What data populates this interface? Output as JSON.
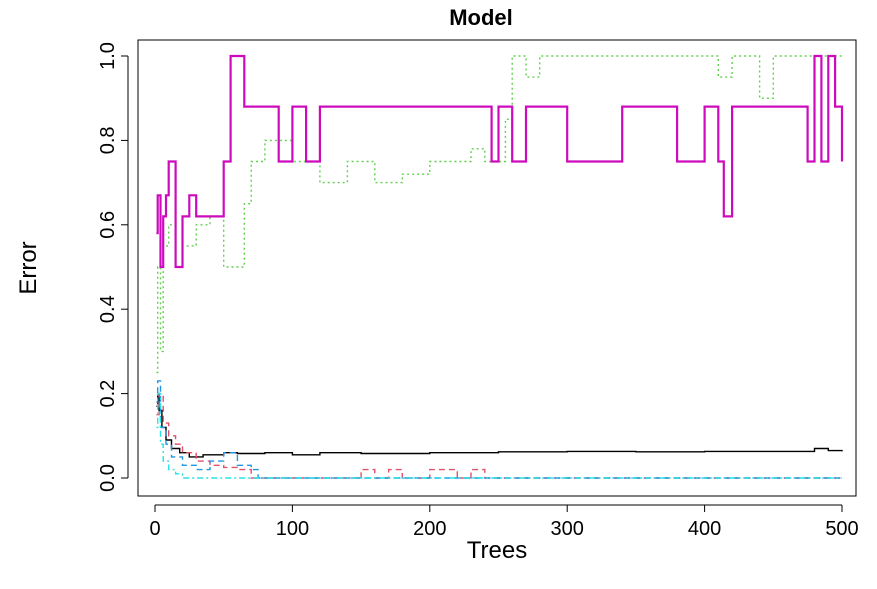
{
  "chart_data": {
    "type": "line",
    "title": "Model",
    "xlabel": "Trees",
    "ylabel": "Error",
    "xlim": [
      0,
      500
    ],
    "ylim": [
      0.0,
      1.0
    ],
    "x_ticks": [
      "0",
      "100",
      "200",
      "300",
      "400",
      "500"
    ],
    "y_ticks": [
      "0.0",
      "0.2",
      "0.4",
      "0.6",
      "0.8",
      "1.0"
    ],
    "grid": false,
    "legend": "none",
    "series": [
      {
        "color": "#000000",
        "dash": "solid",
        "x": [
          1,
          2,
          3,
          5,
          8,
          12,
          18,
          25,
          35,
          50,
          60,
          80,
          100,
          120,
          150,
          200,
          250,
          300,
          350,
          400,
          450,
          480,
          490,
          500
        ],
        "y": [
          0.17,
          0.2,
          0.16,
          0.12,
          0.09,
          0.07,
          0.06,
          0.05,
          0.055,
          0.06,
          0.058,
          0.06,
          0.055,
          0.06,
          0.058,
          0.06,
          0.062,
          0.063,
          0.062,
          0.063,
          0.063,
          0.07,
          0.065,
          0.063
        ]
      },
      {
        "color": "#df536b",
        "dash": "dashed",
        "x": [
          1,
          3,
          6,
          10,
          15,
          20,
          30,
          40,
          50,
          60,
          70,
          80,
          100,
          140,
          150,
          160,
          170,
          180,
          200,
          220,
          230,
          240,
          250,
          300,
          500
        ],
        "y": [
          0.15,
          0.2,
          0.13,
          0.1,
          0.08,
          0.06,
          0.04,
          0.03,
          0.025,
          0.02,
          0.0,
          0.0,
          0.0,
          0.0,
          0.02,
          0.0,
          0.02,
          0.0,
          0.02,
          0.0,
          0.02,
          0.0,
          0.0,
          0.0,
          0.0
        ]
      },
      {
        "color": "#61d04f",
        "dash": "dotted",
        "x": [
          1,
          2,
          4,
          6,
          10,
          15,
          20,
          30,
          40,
          50,
          60,
          65,
          70,
          80,
          100,
          120,
          140,
          160,
          180,
          200,
          230,
          240,
          255,
          260,
          270,
          280,
          300,
          400,
          410,
          420,
          440,
          450,
          460,
          500
        ],
        "y": [
          0.25,
          0.5,
          0.3,
          0.55,
          0.6,
          0.5,
          0.55,
          0.6,
          0.62,
          0.5,
          0.5,
          0.65,
          0.75,
          0.8,
          0.75,
          0.7,
          0.75,
          0.7,
          0.72,
          0.75,
          0.78,
          0.75,
          0.85,
          1.0,
          0.95,
          1.0,
          1.0,
          1.0,
          0.95,
          1.0,
          0.9,
          1.0,
          1.0,
          1.0
        ]
      },
      {
        "color": "#2297e6",
        "dash": "dashed",
        "x": [
          1,
          2,
          4,
          8,
          12,
          20,
          30,
          40,
          50,
          60,
          70,
          75,
          80,
          500
        ],
        "y": [
          0.18,
          0.23,
          0.12,
          0.08,
          0.05,
          0.03,
          0.02,
          0.04,
          0.06,
          0.03,
          0.02,
          0.0,
          0.0,
          0.0
        ]
      },
      {
        "color": "#28e2e5",
        "dash": "dotdash",
        "x": [
          1,
          2,
          4,
          6,
          10,
          15,
          20,
          30,
          500
        ],
        "y": [
          0.12,
          0.2,
          0.08,
          0.04,
          0.02,
          0.01,
          0.0,
          0.0,
          0.0
        ]
      },
      {
        "color": "#cd0bbc",
        "dash": "solid",
        "x": [
          1,
          2,
          4,
          6,
          8,
          10,
          15,
          20,
          25,
          30,
          35,
          40,
          50,
          55,
          60,
          65,
          75,
          90,
          100,
          110,
          120,
          130,
          150,
          170,
          200,
          230,
          245,
          250,
          260,
          270,
          300,
          340,
          370,
          380,
          400,
          410,
          414,
          420,
          450,
          470,
          475,
          480,
          485,
          490,
          495,
          500
        ],
        "y": [
          0.58,
          0.67,
          0.5,
          0.62,
          0.67,
          0.75,
          0.5,
          0.62,
          0.67,
          0.62,
          0.62,
          0.62,
          0.75,
          1.0,
          1.0,
          0.88,
          0.88,
          0.75,
          0.88,
          0.75,
          0.88,
          0.88,
          0.88,
          0.88,
          0.88,
          0.88,
          0.75,
          0.88,
          0.75,
          0.88,
          0.75,
          0.88,
          0.88,
          0.75,
          0.88,
          0.75,
          0.62,
          0.88,
          0.88,
          0.88,
          0.75,
          1.0,
          0.75,
          1.0,
          0.88,
          0.75
        ]
      }
    ]
  }
}
